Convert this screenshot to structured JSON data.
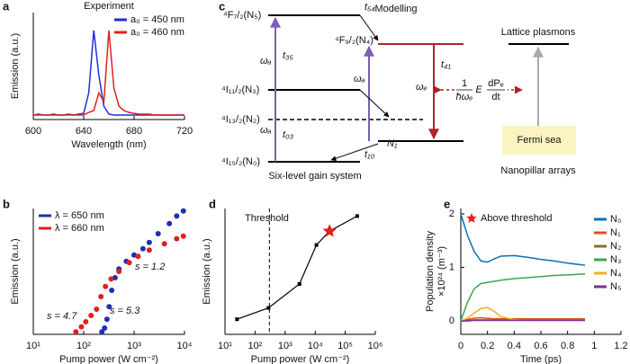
{
  "chart_data": [
    {
      "type": "line",
      "panel": "a",
      "title": "Experiment",
      "xlabel": "Wavelength (nm)",
      "ylabel": "Emission (a.u.)",
      "x": [
        600,
        604,
        608,
        612,
        616,
        620,
        624,
        628,
        632,
        636,
        640,
        644,
        648,
        652,
        656,
        660,
        664,
        668,
        672,
        676,
        680,
        684,
        688,
        692,
        696,
        700,
        704,
        708,
        712,
        716,
        720
      ],
      "series": [
        {
          "name": "a₀ = 450 nm",
          "color": "#1f2fd6",
          "values": [
            0.05,
            0.06,
            0.05,
            0.05,
            0.06,
            0.05,
            0.05,
            0.06,
            0.05,
            0.06,
            0.07,
            0.3,
            1.0,
            0.5,
            0.15,
            0.06,
            0.05,
            0.05,
            0.05,
            0.05,
            0.05,
            0.05,
            0.05,
            0.05,
            0.05,
            0.05,
            0.05,
            0.05,
            0.05,
            0.05,
            0.05
          ]
        },
        {
          "name": "a₀ = 460 nm",
          "color": "#e0201b",
          "values": [
            0.05,
            0.05,
            0.05,
            0.05,
            0.05,
            0.05,
            0.05,
            0.05,
            0.05,
            0.05,
            0.05,
            0.08,
            0.1,
            0.3,
            0.2,
            1.0,
            0.35,
            0.15,
            0.1,
            0.08,
            0.07,
            0.06,
            0.06,
            0.06,
            0.05,
            0.05,
            0.05,
            0.05,
            0.05,
            0.05,
            0.05
          ]
        }
      ],
      "xlim": [
        600,
        720
      ],
      "xticks": [
        600,
        640,
        680,
        720
      ],
      "ylim": [
        0,
        1.2
      ],
      "legend": "upper right"
    },
    {
      "type": "scatter",
      "panel": "b",
      "xlabel": "Pump power (W cm⁻²)",
      "ylabel": "Emission (a.u.)",
      "series": [
        {
          "name": "λ = 650 nm",
          "color": "#1f2fb0",
          "x": [
            230,
            260,
            290,
            320,
            360,
            420,
            500,
            700,
            1000,
            1500,
            2000,
            3000,
            5000,
            7000,
            9500
          ],
          "values": [
            0.02,
            0.05,
            0.12,
            0.22,
            0.35,
            0.45,
            0.52,
            0.58,
            0.63,
            0.68,
            0.73,
            0.8,
            0.88,
            0.94,
            0.98
          ]
        },
        {
          "name": "λ = 660 nm",
          "color": "#e0201b",
          "x": [
            70,
            90,
            110,
            140,
            180,
            220,
            270,
            350,
            500,
            800,
            1200,
            2000,
            4000,
            7000,
            9500
          ],
          "values": [
            0.02,
            0.06,
            0.1,
            0.15,
            0.2,
            0.3,
            0.38,
            0.44,
            0.5,
            0.57,
            0.62,
            0.67,
            0.72,
            0.76,
            0.78
          ]
        }
      ],
      "xlog": true,
      "xlim": [
        10,
        10000
      ],
      "xticks": [
        {
          "value": 10,
          "label": "10¹"
        },
        {
          "value": 100,
          "label": "10²"
        },
        {
          "value": 1000,
          "label": "10³"
        },
        {
          "value": 10000,
          "label": "10⁴"
        }
      ],
      "ylim": [
        0,
        1
      ],
      "legend": "upper left",
      "annotations": [
        "s = 1.2",
        "s = 4.7",
        "s = 5.3"
      ]
    },
    {
      "type": "line",
      "panel": "d",
      "xlabel": "Pump power (W cm⁻²)",
      "ylabel": "Emission (a.u.)",
      "x": [
        25,
        280,
        3000,
        11000,
        30000,
        250000
      ],
      "values": [
        0.12,
        0.21,
        0.4,
        0.71,
        0.82,
        0.94
      ],
      "color": "#000000",
      "star_point": 4,
      "star_color": "#e0201b",
      "threshold_x": 300,
      "annotation": "Threshold",
      "xlog": true,
      "xlim": [
        10,
        1000000
      ],
      "xticks": [
        {
          "value": 10,
          "label": "10¹"
        },
        {
          "value": 100,
          "label": "10²"
        },
        {
          "value": 1000,
          "label": "10³"
        },
        {
          "value": 10000,
          "label": "10⁴"
        },
        {
          "value": 100000,
          "label": "10⁵"
        },
        {
          "value": 1000000,
          "label": "10⁶"
        }
      ],
      "ylim": [
        0,
        1
      ]
    },
    {
      "type": "line",
      "panel": "e",
      "xlabel": "Time (ps)",
      "ylabel": [
        "Population density",
        "×10²⁴ (m⁻³)"
      ],
      "marker_label": "Above threshold",
      "x": [
        0,
        0.05,
        0.1,
        0.15,
        0.2,
        0.25,
        0.3,
        0.4,
        0.5,
        0.6,
        0.7,
        0.8,
        0.93
      ],
      "series": [
        {
          "name": "N₀",
          "color": "#0a72b0",
          "values": [
            2.0,
            1.6,
            1.3,
            1.12,
            1.1,
            1.16,
            1.21,
            1.22,
            1.19,
            1.15,
            1.12,
            1.08,
            1.04
          ]
        },
        {
          "name": "N₁",
          "color": "#d95319",
          "values": [
            0,
            0.03,
            0.05,
            0.06,
            0.05,
            0.04,
            0.04,
            0.04,
            0.04,
            0.04,
            0.04,
            0.04,
            0.04
          ]
        },
        {
          "name": "N₂",
          "color": "#8c6d2c",
          "values": [
            0,
            0.01,
            0.02,
            0.02,
            0.02,
            0.02,
            0.02,
            0.02,
            0.02,
            0.02,
            0.02,
            0.02,
            0.02
          ]
        },
        {
          "name": "N₃",
          "color": "#3fa34d",
          "values": [
            0,
            0.35,
            0.6,
            0.7,
            0.72,
            0.74,
            0.76,
            0.79,
            0.81,
            0.83,
            0.85,
            0.86,
            0.88
          ]
        },
        {
          "name": "N₄",
          "color": "#edb120",
          "values": [
            0,
            0.05,
            0.15,
            0.23,
            0.25,
            0.18,
            0.08,
            0.02,
            0.01,
            0.01,
            0.01,
            0.01,
            0.01
          ]
        },
        {
          "name": "N₅",
          "color": "#7e2f8e",
          "values": [
            0,
            0,
            0.01,
            0.01,
            0.01,
            0.01,
            0.01,
            0.01,
            0.01,
            0.01,
            0.01,
            0.01,
            0.01
          ]
        }
      ],
      "xlim": [
        0,
        1.2
      ],
      "xticks": [
        0,
        0.2,
        0.4,
        0.6,
        0.8,
        1,
        1.2
      ],
      "ylim": [
        -0.25,
        2.1
      ],
      "yticks": [
        0,
        1,
        2
      ],
      "legend": "right"
    }
  ],
  "diagram": {
    "panel": "c",
    "title": "Modelling",
    "levels": [
      "⁴F₇/₂(N₅)",
      "⁴F₉/₂(N₄)",
      "⁴I₁₁/₂(N₃)",
      "⁴I₁₃/₂(N₂)",
      "⁴I₁₅/₂(N₀)"
    ],
    "n1": "N₁",
    "rates": [
      "t₅₄",
      "t₃₅",
      "t₄₁",
      "t₀₃",
      "t₁₀"
    ],
    "omegas": [
      "ωₐ",
      "ωₐ",
      "ωₐ",
      "ωₑ"
    ],
    "gain_system": "Six-level gain system",
    "lattice": "Lattice plasmons",
    "fermi": "Fermi sea",
    "nanopillar": "Nanopillar arrays",
    "coupling": {
      "numerator": "1",
      "denominator": "ħωₑ",
      "field": "E",
      "dp": "dPₑ",
      "dt": "dt"
    }
  }
}
